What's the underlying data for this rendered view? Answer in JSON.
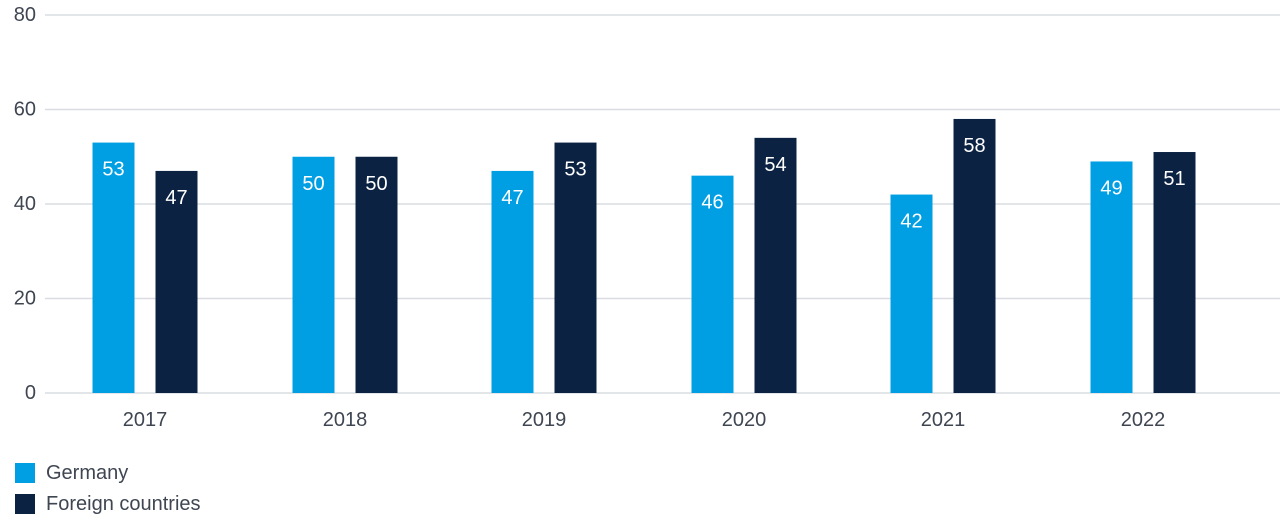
{
  "chart_data": {
    "type": "bar",
    "categories": [
      "2017",
      "2018",
      "2019",
      "2020",
      "2021",
      "2022"
    ],
    "series": [
      {
        "name": "Germany",
        "color": "#009fe3",
        "values": [
          53,
          50,
          47,
          46,
          42,
          49
        ]
      },
      {
        "name": "Foreign countries",
        "color": "#0b2242",
        "values": [
          47,
          50,
          53,
          54,
          58,
          51
        ]
      }
    ],
    "title": "",
    "xlabel": "",
    "ylabel": "",
    "ylim": [
      0,
      80
    ],
    "yticks": [
      0,
      20,
      40,
      60,
      80
    ],
    "grid": true,
    "data_labels": true,
    "legend_position": "bottom-left"
  }
}
